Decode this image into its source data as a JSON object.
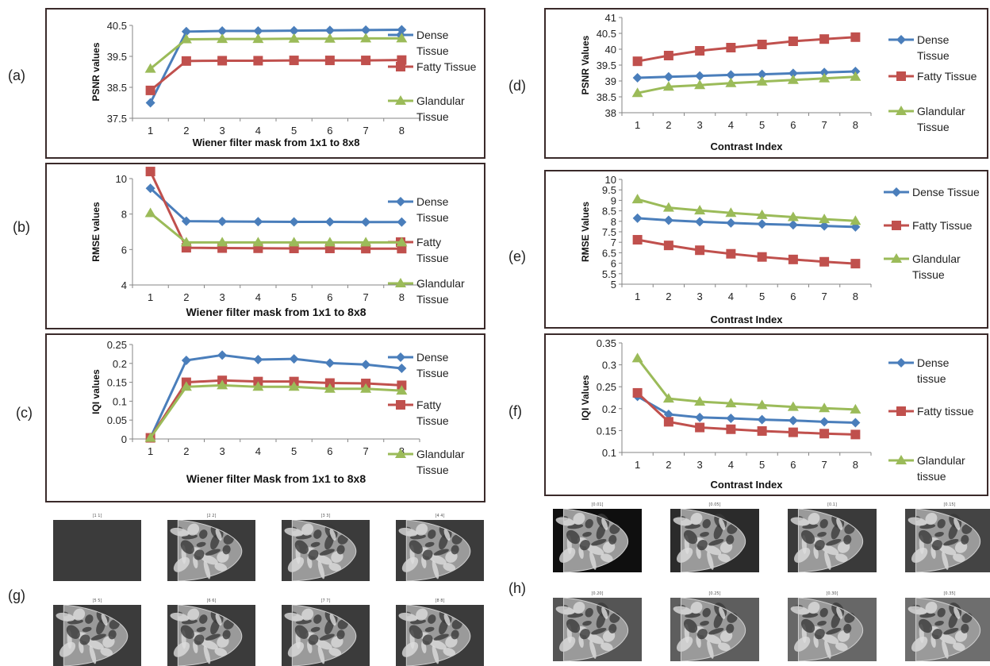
{
  "panel_labels": [
    "(a)",
    "(b)",
    "(c)",
    "(d)",
    "(e)",
    "(f)",
    "(g)",
    "(h)"
  ],
  "colors": {
    "blue": "#4a7ebb",
    "red": "#c0504d",
    "green": "#9bbb59",
    "frame": "#3a2a2a"
  },
  "chart_data": [
    {
      "id": "a",
      "type": "line",
      "categories": [
        1,
        2,
        3,
        4,
        5,
        6,
        7,
        8
      ],
      "xlabel": "Wiener filter mask from 1x1 to 8x8",
      "ylabel": "PSNR values",
      "ylim": [
        37.5,
        40.5
      ],
      "yticks": [
        37.5,
        38.5,
        39.5,
        40.5
      ],
      "series": [
        {
          "name": "Dense Tissue",
          "color": "blue",
          "marker": "diamond",
          "values": [
            38.0,
            40.3,
            40.32,
            40.32,
            40.33,
            40.34,
            40.35,
            40.36
          ]
        },
        {
          "name": "Fatty Tissue",
          "color": "red",
          "marker": "square",
          "values": [
            38.4,
            39.35,
            39.36,
            39.36,
            39.37,
            39.37,
            39.37,
            39.38
          ]
        },
        {
          "name": "Glandular Tissue",
          "color": "green",
          "marker": "triangle",
          "values": [
            39.1,
            40.05,
            40.06,
            40.06,
            40.07,
            40.07,
            40.08,
            40.08
          ]
        }
      ],
      "legend": [
        "Dense\nTissue",
        "Fatty Tissue",
        "Glandular\nTissue"
      ]
    },
    {
      "id": "b",
      "type": "line",
      "categories": [
        1,
        2,
        3,
        4,
        5,
        6,
        7,
        8
      ],
      "xlabel": "Wiener filter mask from 1x1 to 8x8",
      "ylabel": "RMSE values",
      "ylim": [
        4,
        10
      ],
      "yticks": [
        4,
        6,
        8,
        10
      ],
      "series": [
        {
          "name": "Dense Tissue",
          "color": "blue",
          "marker": "diamond",
          "values": [
            9.45,
            7.6,
            7.58,
            7.57,
            7.56,
            7.56,
            7.55,
            7.55
          ]
        },
        {
          "name": "Fatty Tissue",
          "color": "red",
          "marker": "square",
          "values": [
            10.4,
            6.1,
            6.08,
            6.07,
            6.06,
            6.06,
            6.05,
            6.05
          ]
        },
        {
          "name": "Glandular Tissue",
          "color": "green",
          "marker": "triangle",
          "values": [
            8.05,
            6.4,
            6.4,
            6.4,
            6.4,
            6.4,
            6.4,
            6.4
          ]
        }
      ],
      "legend": [
        "Dense\nTissue",
        "Fatty\nTissue",
        "Glandular\nTissue"
      ]
    },
    {
      "id": "c",
      "type": "line",
      "categories": [
        1,
        2,
        3,
        4,
        5,
        6,
        7,
        8
      ],
      "xlabel": "Wiener filter Mask from 1x1 to 8x8",
      "ylabel": "IQI values",
      "ylim": [
        0,
        0.25
      ],
      "yticks": [
        "0",
        "0.05",
        "0.1",
        "0.15",
        "0.2",
        "0.25"
      ],
      "series": [
        {
          "name": "Dense Tissue",
          "color": "blue",
          "marker": "diamond",
          "values": [
            0.003,
            0.208,
            0.222,
            0.21,
            0.212,
            0.201,
            0.197,
            0.187
          ]
        },
        {
          "name": "Fatty Tissue",
          "color": "red",
          "marker": "square",
          "values": [
            0.003,
            0.15,
            0.155,
            0.152,
            0.152,
            0.148,
            0.147,
            0.142
          ]
        },
        {
          "name": "Glandular Tissue",
          "color": "green",
          "marker": "triangle",
          "values": [
            0.003,
            0.138,
            0.142,
            0.138,
            0.138,
            0.133,
            0.133,
            0.128
          ]
        }
      ],
      "legend": [
        "Dense\nTissue",
        "Fatty\nTissue",
        "Glandular\nTissue"
      ]
    },
    {
      "id": "d",
      "type": "line",
      "categories": [
        1,
        2,
        3,
        4,
        5,
        6,
        7,
        8
      ],
      "xlabel": "Contrast Index",
      "ylabel": "PSNR Values",
      "ylim": [
        38,
        41
      ],
      "yticks": [
        "38",
        "38.5",
        "39",
        "39.5",
        "40",
        "40.5",
        "41"
      ],
      "series": [
        {
          "name": "Dense Tissue",
          "color": "blue",
          "marker": "diamond",
          "values": [
            39.1,
            39.13,
            39.16,
            39.19,
            39.21,
            39.24,
            39.27,
            39.3
          ]
        },
        {
          "name": "Fatty Tissue",
          "color": "red",
          "marker": "square",
          "values": [
            39.62,
            39.8,
            39.95,
            40.05,
            40.15,
            40.25,
            40.32,
            40.38
          ]
        },
        {
          "name": "Glandular Tissue",
          "color": "green",
          "marker": "triangle",
          "values": [
            38.62,
            38.82,
            38.87,
            38.93,
            38.98,
            39.03,
            39.08,
            39.13
          ]
        }
      ],
      "legend": [
        "Dense\nTissue",
        "Fatty Tissue",
        "Glandular\nTissue"
      ]
    },
    {
      "id": "e",
      "type": "line",
      "categories": [
        1,
        2,
        3,
        4,
        5,
        6,
        7,
        8
      ],
      "xlabel": "Contrast Index",
      "ylabel": "RMSE Values",
      "ylim": [
        5,
        10
      ],
      "yticks": [
        "5",
        "5.5",
        "6",
        "6.5",
        "7",
        "7.5",
        "8",
        "8.5",
        "9",
        "9.5",
        "10"
      ],
      "series": [
        {
          "name": "Dense Tissue",
          "color": "blue",
          "marker": "diamond",
          "values": [
            8.15,
            8.05,
            7.98,
            7.92,
            7.87,
            7.83,
            7.78,
            7.73
          ]
        },
        {
          "name": "Fatty Tissue",
          "color": "red",
          "marker": "square",
          "values": [
            7.12,
            6.85,
            6.62,
            6.45,
            6.3,
            6.18,
            6.07,
            5.98
          ]
        },
        {
          "name": "Glandular Tissue",
          "color": "green",
          "marker": "triangle",
          "values": [
            9.05,
            8.65,
            8.52,
            8.4,
            8.3,
            8.2,
            8.1,
            8.02
          ]
        }
      ],
      "legend": [
        "Dense Tissue",
        "Fatty Tissue",
        "Glandular\nTissue"
      ]
    },
    {
      "id": "f",
      "type": "line",
      "categories": [
        1,
        2,
        3,
        4,
        5,
        6,
        7,
        8
      ],
      "xlabel": "Contrast Index",
      "ylabel": "IQI Values",
      "ylim": [
        0.1,
        0.35
      ],
      "yticks": [
        "0.1",
        "0.15",
        "0.2",
        "0.25",
        "0.3",
        "0.35"
      ],
      "series": [
        {
          "name": "Dense tissue",
          "color": "blue",
          "marker": "diamond",
          "values": [
            0.228,
            0.187,
            0.18,
            0.178,
            0.175,
            0.173,
            0.17,
            0.168
          ]
        },
        {
          "name": "Fatty tissue",
          "color": "red",
          "marker": "square",
          "values": [
            0.236,
            0.17,
            0.157,
            0.153,
            0.149,
            0.146,
            0.143,
            0.141
          ]
        },
        {
          "name": "Glandular tissue",
          "color": "green",
          "marker": "triangle",
          "values": [
            0.315,
            0.223,
            0.216,
            0.212,
            0.208,
            0.204,
            0.201,
            0.198
          ]
        }
      ],
      "legend": [
        "Dense\ntissue",
        "Fatty tissue",
        "Glandular\ntissue"
      ]
    }
  ],
  "thumbs_g": {
    "captions": [
      "[1 1]",
      "[2 2]",
      "[3 3]",
      "[4 4]",
      "[5 5]",
      "[6 6]",
      "[7 7]",
      "[8 8]"
    ],
    "show_image": [
      false,
      true,
      true,
      true,
      true,
      true,
      true,
      true
    ]
  },
  "thumbs_h": {
    "captions": [
      "[0.01]",
      "[0.05]",
      "[0.1]",
      "[0.15]",
      "[0.20]",
      "[0.25]",
      "[0.30]",
      "[0.35]"
    ],
    "background": [
      "#0f0f0f",
      "#2b2b2b",
      "#3a3a3a",
      "#444444",
      "#555555",
      "#5e5e5e",
      "#676767",
      "#6e6e6e"
    ]
  }
}
